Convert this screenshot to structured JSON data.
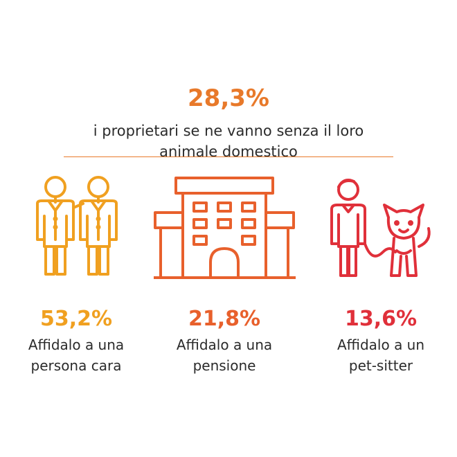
{
  "headline": {
    "value": "28,3%",
    "text": "i proprietari se ne vanno senza il loro animale domestico"
  },
  "items": [
    {
      "value": "53,2%",
      "line1": "Affidalo a una",
      "line2": "persona cara",
      "color": "#f0a020",
      "icon": "people-icon"
    },
    {
      "value": "21,8%",
      "line1": "Affidalo a una",
      "line2": "pensione",
      "color": "#e8602c",
      "icon": "building-icon"
    },
    {
      "value": "13,6%",
      "line1": "Affidalo a un",
      "line2": "pet-sitter",
      "color": "#e0303a",
      "icon": "person-with-dog-icon"
    }
  ],
  "chart_data": {
    "type": "table",
    "title": "28,3%",
    "subtitle": "i proprietari se ne vanno senza il loro animale domestico",
    "categories": [
      "Affidalo a una persona cara",
      "Affidalo a una pensione",
      "Affidalo a un pet-sitter"
    ],
    "values": [
      53.2,
      21.8,
      13.6
    ],
    "value_labels": [
      "53,2%",
      "21,8%",
      "13,6%"
    ]
  }
}
